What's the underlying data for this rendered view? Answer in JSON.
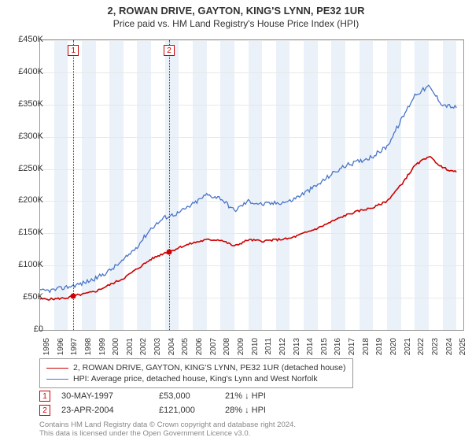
{
  "title": "2, ROWAN DRIVE, GAYTON, KING'S LYNN, PE32 1UR",
  "subtitle": "Price paid vs. HM Land Registry's House Price Index (HPI)",
  "chart": {
    "type": "line",
    "background_color": "#ffffff",
    "grid_color": "#e8e8e8",
    "border_color": "#999999",
    "band_color": "#eaf1f8",
    "ylim": [
      0,
      450000
    ],
    "ytick_step": 50000,
    "yticks": [
      "£0",
      "£50K",
      "£100K",
      "£150K",
      "£200K",
      "£250K",
      "£300K",
      "£350K",
      "£400K",
      "£450K"
    ],
    "xlim": [
      1995,
      2025.5
    ],
    "xticks": [
      1995,
      1996,
      1997,
      1998,
      1999,
      2000,
      2001,
      2002,
      2003,
      2004,
      2005,
      2006,
      2007,
      2008,
      2009,
      2010,
      2011,
      2012,
      2013,
      2014,
      2015,
      2016,
      2017,
      2018,
      2019,
      2020,
      2021,
      2022,
      2023,
      2024,
      2025
    ],
    "series": [
      {
        "name": "price_paid",
        "label": "2, ROWAN DRIVE, GAYTON, KING'S LYNN, PE32 1UR (detached house)",
        "color": "#cc0000",
        "line_width": 1.6,
        "x": [
          1995,
          1996,
          1997,
          1997.4,
          1998,
          1999,
          2000,
          2001,
          2002,
          2003,
          2004,
          2004.3,
          2005,
          2006,
          2007,
          2008,
          2009,
          2010,
          2011,
          2012,
          2013,
          2014,
          2015,
          2016,
          2017,
          2018,
          2019,
          2020,
          2021,
          2022,
          2023,
          2024,
          2025
        ],
        "y": [
          48000,
          48000,
          50000,
          53000,
          55000,
          60000,
          70000,
          80000,
          95000,
          110000,
          120000,
          121000,
          128000,
          135000,
          140000,
          140000,
          130000,
          140000,
          138000,
          140000,
          142000,
          150000,
          158000,
          168000,
          178000,
          185000,
          190000,
          200000,
          225000,
          255000,
          270000,
          252000,
          245000
        ]
      },
      {
        "name": "hpi",
        "label": "HPI: Average price, detached house, King's Lynn and West Norfolk",
        "color": "#4a74c9",
        "line_width": 1.3,
        "x": [
          1995,
          1996,
          1997,
          1998,
          1999,
          2000,
          2001,
          2002,
          2003,
          2004,
          2005,
          2006,
          2007,
          2008,
          2009,
          2010,
          2011,
          2012,
          2013,
          2014,
          2015,
          2016,
          2017,
          2018,
          2019,
          2020,
          2021,
          2022,
          2023,
          2024,
          2025
        ],
        "y": [
          60000,
          62000,
          67000,
          72000,
          80000,
          92000,
          108000,
          130000,
          158000,
          175000,
          182000,
          195000,
          210000,
          205000,
          185000,
          200000,
          195000,
          197000,
          200000,
          212000,
          225000,
          242000,
          255000,
          262000,
          270000,
          285000,
          325000,
          365000,
          378000,
          350000,
          345000
        ]
      }
    ],
    "markers": [
      {
        "n": "1",
        "x": 1997.4,
        "y": 53000
      },
      {
        "n": "2",
        "x": 2004.3,
        "y": 121000
      }
    ],
    "marker_color": "#cc0000"
  },
  "legend": {
    "items": [
      {
        "color": "#cc0000",
        "label": "2, ROWAN DRIVE, GAYTON, KING'S LYNN, PE32 1UR (detached house)"
      },
      {
        "color": "#4a74c9",
        "label": "HPI: Average price, detached house, King's Lynn and West Norfolk"
      }
    ]
  },
  "sales": [
    {
      "n": "1",
      "date": "30-MAY-1997",
      "price": "£53,000",
      "delta": "21% ↓ HPI"
    },
    {
      "n": "2",
      "date": "23-APR-2004",
      "price": "£121,000",
      "delta": "28% ↓ HPI"
    }
  ],
  "footer": {
    "line1": "Contains HM Land Registry data © Crown copyright and database right 2024.",
    "line2": "This data is licensed under the Open Government Licence v3.0."
  }
}
